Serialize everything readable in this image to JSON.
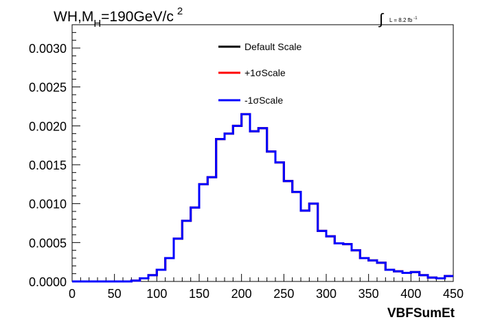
{
  "chart_data": {
    "type": "line",
    "style": "step-histogram",
    "title": {
      "prefix": "WH,M",
      "subscript": "H",
      "suffix": "=190GeV/c",
      "superscript": "2"
    },
    "lumi": {
      "integral_symbol": "∫",
      "text": "L = 8.2 fb",
      "superscript": "-1"
    },
    "xlabel": "VBFSumEt",
    "ylabel": "",
    "xlim": [
      0,
      450
    ],
    "ylim": [
      0,
      0.0033
    ],
    "x_ticks": [
      "0",
      "50",
      "100",
      "150",
      "200",
      "250",
      "300",
      "350",
      "400",
      "450"
    ],
    "y_ticks": [
      "0.0000",
      "0.0005",
      "0.0010",
      "0.0015",
      "0.0020",
      "0.0025",
      "0.0030"
    ],
    "bin_edges": [
      0,
      10,
      20,
      30,
      40,
      50,
      60,
      70,
      80,
      90,
      100,
      110,
      120,
      130,
      140,
      150,
      160,
      170,
      180,
      190,
      200,
      210,
      220,
      230,
      240,
      250,
      260,
      270,
      280,
      290,
      300,
      310,
      320,
      330,
      340,
      350,
      360,
      370,
      380,
      390,
      400,
      410,
      420,
      430,
      440,
      450
    ],
    "legend_placement": "top-center",
    "grid": false,
    "series": [
      {
        "name": "Default Scale",
        "color": "#000000",
        "values": [
          0,
          0,
          0,
          0,
          0,
          0,
          0,
          1e-05,
          4e-05,
          8e-05,
          0.00015,
          0.0003,
          0.00055,
          0.00078,
          0.00095,
          0.00125,
          0.00134,
          0.00183,
          0.0019,
          0.002,
          0.00215,
          0.00193,
          0.00197,
          0.00167,
          0.00153,
          0.00129,
          0.00115,
          0.00091,
          0.001,
          0.00065,
          0.00058,
          0.00049,
          0.00048,
          0.0004,
          0.0003,
          0.00027,
          0.00024,
          0.00015,
          0.00013,
          0.00011,
          0.00012,
          8e-05,
          5e-05,
          4e-05,
          7e-05
        ]
      },
      {
        "name": "+1σScale",
        "color": "#ff0000",
        "values": [
          0,
          0,
          0,
          0,
          0,
          0,
          0,
          1e-05,
          4e-05,
          8e-05,
          0.00015,
          0.0003,
          0.00055,
          0.00078,
          0.00095,
          0.00125,
          0.00134,
          0.00183,
          0.0019,
          0.002,
          0.00215,
          0.00193,
          0.00197,
          0.00167,
          0.00153,
          0.00129,
          0.00115,
          0.00091,
          0.001,
          0.00065,
          0.00058,
          0.00049,
          0.00048,
          0.0004,
          0.0003,
          0.00027,
          0.00024,
          0.00015,
          0.00013,
          0.00011,
          0.00012,
          8e-05,
          5e-05,
          4e-05,
          7e-05
        ]
      },
      {
        "name": "-1σScale",
        "color": "#0000ff",
        "values": [
          0,
          0,
          0,
          0,
          0,
          0,
          0,
          1e-05,
          4e-05,
          8e-05,
          0.00015,
          0.0003,
          0.00055,
          0.00078,
          0.00095,
          0.00125,
          0.00134,
          0.00183,
          0.0019,
          0.002,
          0.00215,
          0.00193,
          0.00197,
          0.00167,
          0.00153,
          0.00129,
          0.00115,
          0.00091,
          0.001,
          0.00065,
          0.00058,
          0.00049,
          0.00048,
          0.0004,
          0.0003,
          0.00027,
          0.00024,
          0.00015,
          0.00013,
          0.00011,
          0.00012,
          8e-05,
          5e-05,
          4e-05,
          7e-05
        ]
      }
    ]
  }
}
